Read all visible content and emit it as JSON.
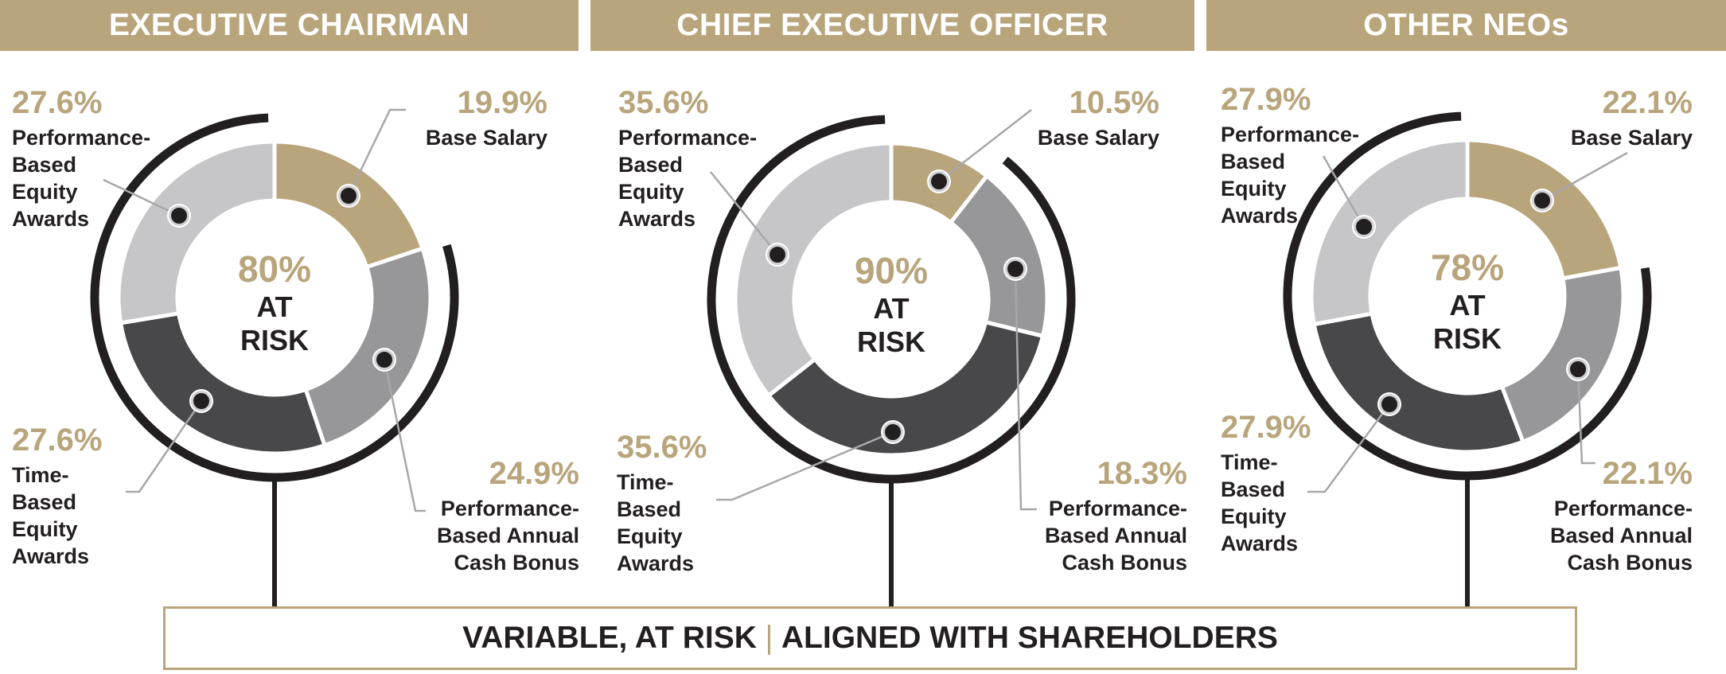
{
  "colors": {
    "gold": "#b9a57c",
    "light_gray": "#c6c6c8",
    "mid_gray": "#97979a",
    "dark_gray": "#48484a",
    "text_dark": "#231f20"
  },
  "footer": {
    "left": "VARIABLE, AT RISK",
    "right": "ALIGNED WITH SHAREHOLDERS"
  },
  "chart_data": [
    {
      "type": "pie",
      "title": "EXECUTIVE CHAIRMAN",
      "center_value": "80%",
      "center_line1": "AT",
      "center_line2": "RISK",
      "slices": [
        {
          "value": 19.9,
          "label": "19.9%",
          "name": "Base Salary",
          "color": "#b9a57c"
        },
        {
          "value": 24.9,
          "label": "24.9%",
          "name": "Performance-Based Annual Cash Bonus",
          "color": "#97979a"
        },
        {
          "value": 27.6,
          "label": "27.6%",
          "name": "Time-Based Equity Awards",
          "color": "#48484a"
        },
        {
          "value": 27.6,
          "label": "27.6%",
          "name": "Performance-Based Equity Awards",
          "color": "#c6c6c8"
        }
      ]
    },
    {
      "type": "pie",
      "title": "CHIEF EXECUTIVE OFFICER",
      "center_value": "90%",
      "center_line1": "AT",
      "center_line2": "RISK",
      "slices": [
        {
          "value": 10.5,
          "label": "10.5%",
          "name": "Base Salary",
          "color": "#b9a57c"
        },
        {
          "value": 18.3,
          "label": "18.3%",
          "name": "Performance-Based Annual Cash Bonus",
          "color": "#97979a"
        },
        {
          "value": 35.6,
          "label": "35.6%",
          "name": "Time-Based Equity Awards",
          "color": "#48484a"
        },
        {
          "value": 35.6,
          "label": "35.6%",
          "name": "Performance-Based Equity Awards",
          "color": "#c6c6c8"
        }
      ]
    },
    {
      "type": "pie",
      "title": "OTHER NEOs",
      "center_value": "78%",
      "center_line1": "AT",
      "center_line2": "RISK",
      "slices": [
        {
          "value": 22.1,
          "label": "22.1%",
          "name": "Base Salary",
          "color": "#b9a57c"
        },
        {
          "value": 22.1,
          "label": "22.1%",
          "name": "Performance-Based Annual Cash Bonus",
          "color": "#97979a"
        },
        {
          "value": 27.9,
          "label": "27.9%",
          "name": "Time-Based Equity Awards",
          "color": "#48484a"
        },
        {
          "value": 27.9,
          "label": "27.9%",
          "name": "Performance-Based Equity Awards",
          "color": "#c6c6c8"
        }
      ]
    }
  ]
}
